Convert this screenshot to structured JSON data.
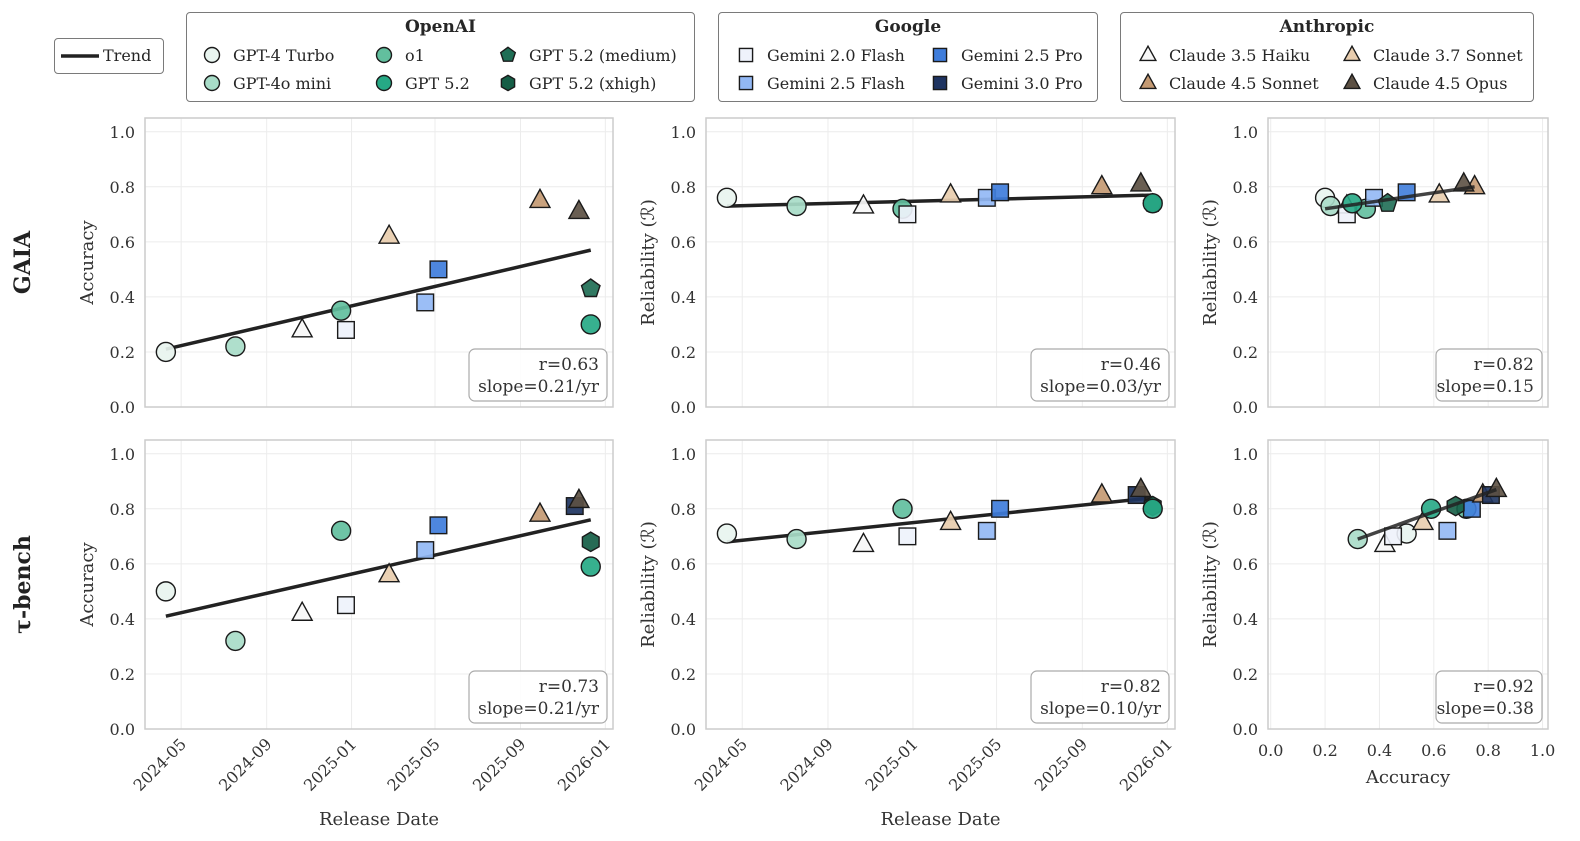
{
  "chart_data": {
    "type": "scatter",
    "trend_legend_label": "Trend",
    "legend_groups": [
      {
        "title": "OpenAI",
        "models": [
          {
            "name": "GPT-4 Turbo",
            "marker": "circle",
            "color": "#e8f4ef"
          },
          {
            "name": "GPT-4o mini",
            "marker": "circle",
            "color": "#a8dcc8"
          },
          {
            "name": "o1",
            "marker": "circle",
            "color": "#62bf9e"
          },
          {
            "name": "GPT 5.2",
            "marker": "circle",
            "color": "#26a985"
          },
          {
            "name": "GPT 5.2 (medium)",
            "marker": "pentagon",
            "color": "#1f6e55"
          },
          {
            "name": "GPT 5.2 (xhigh)",
            "marker": "hexagon",
            "color": "#155e46"
          }
        ]
      },
      {
        "title": "Google",
        "models": [
          {
            "name": "Gemini 2.0 Flash",
            "marker": "square",
            "color": "#eef2fb"
          },
          {
            "name": "Gemini 2.5 Flash",
            "marker": "square",
            "color": "#92b8f5"
          },
          {
            "name": "Gemini 2.5 Pro",
            "marker": "square",
            "color": "#3f7ddb"
          },
          {
            "name": "Gemini 3.0 Pro",
            "marker": "square",
            "color": "#1e3461"
          }
        ]
      },
      {
        "title": "Anthropic",
        "models": [
          {
            "name": "Claude 3.5 Haiku",
            "marker": "triangle",
            "color": "#f7f7f7"
          },
          {
            "name": "Claude 3.7 Sonnet",
            "marker": "triangle",
            "color": "#e8cdae"
          },
          {
            "name": "Claude 4.5 Sonnet",
            "marker": "triangle",
            "color": "#c49a73"
          },
          {
            "name": "Claude 4.5 Opus",
            "marker": "triangle",
            "color": "#5c5043"
          }
        ]
      }
    ],
    "release_dates": {
      "GPT-4 Turbo": "2024-04-09",
      "GPT-4o mini": "2024-07-18",
      "Claude 3.5 Haiku": "2024-10-22",
      "o1": "2024-12-17",
      "Gemini 2.0 Flash": "2024-12-24",
      "Claude 3.7 Sonnet": "2025-02-24",
      "Gemini 2.5 Flash": "2025-04-17",
      "Gemini 2.5 Pro": "2025-05-06",
      "Claude 4.5 Sonnet": "2025-09-29",
      "Gemini 3.0 Pro": "2025-11-18",
      "Claude 4.5 Opus": "2025-11-24",
      "GPT 5.2": "2025-12-11",
      "GPT 5.2 (medium)": "2025-12-11",
      "GPT 5.2 (xhigh)": "2025-12-11"
    },
    "rows": [
      {
        "label": "GAIA",
        "accuracy": {
          "GPT-4 Turbo": 0.2,
          "GPT-4o mini": 0.22,
          "Claude 3.5 Haiku": 0.28,
          "o1": 0.35,
          "Gemini 2.0 Flash": 0.28,
          "Claude 3.7 Sonnet": 0.62,
          "Gemini 2.5 Flash": 0.38,
          "Gemini 2.5 Pro": 0.5,
          "Claude 4.5 Sonnet": 0.75,
          "Claude 4.5 Opus": 0.71,
          "GPT 5.2": 0.3,
          "GPT 5.2 (medium)": 0.43
        },
        "reliability": {
          "GPT-4 Turbo": 0.76,
          "GPT-4o mini": 0.73,
          "Claude 3.5 Haiku": 0.73,
          "o1": 0.72,
          "Gemini 2.0 Flash": 0.7,
          "Claude 3.7 Sonnet": 0.77,
          "Gemini 2.5 Flash": 0.76,
          "Gemini 2.5 Pro": 0.78,
          "Claude 4.5 Sonnet": 0.8,
          "Claude 4.5 Opus": 0.81,
          "GPT 5.2": 0.74,
          "GPT 5.2 (medium)": 0.74
        },
        "panels": [
          {
            "xlabel": "",
            "ylabel": "Accuracy",
            "r": "r=0.63",
            "slope": "slope=0.21/yr",
            "trend": {
              "start": [
                "2024-04-09",
                0.21
              ],
              "end": [
                "2025-12-11",
                0.57
              ]
            }
          },
          {
            "xlabel": "",
            "ylabel": "Reliability (ℛ)",
            "r": "r=0.46",
            "slope": "slope=0.03/yr",
            "trend": {
              "start": [
                "2024-04-09",
                0.73
              ],
              "end": [
                "2025-12-11",
                0.77
              ]
            }
          },
          {
            "xlabel": "",
            "ylabel": "Reliability (ℛ)",
            "r": "r=0.82",
            "slope": "slope=0.15",
            "trend": {
              "start": [
                0.2,
                0.72
              ],
              "end": [
                0.75,
                0.8
              ]
            }
          }
        ]
      },
      {
        "label": "τ-bench",
        "accuracy": {
          "GPT-4 Turbo": 0.5,
          "GPT-4o mini": 0.32,
          "Claude 3.5 Haiku": 0.42,
          "o1": 0.72,
          "Gemini 2.0 Flash": 0.45,
          "Claude 3.7 Sonnet": 0.56,
          "Gemini 2.5 Flash": 0.65,
          "Gemini 2.5 Pro": 0.74,
          "Claude 4.5 Sonnet": 0.78,
          "Gemini 3.0 Pro": 0.81,
          "Claude 4.5 Opus": 0.83,
          "GPT 5.2": 0.59,
          "GPT 5.2 (xhigh)": 0.68
        },
        "reliability": {
          "GPT-4 Turbo": 0.71,
          "GPT-4o mini": 0.69,
          "Claude 3.5 Haiku": 0.67,
          "o1": 0.8,
          "Gemini 2.0 Flash": 0.7,
          "Claude 3.7 Sonnet": 0.75,
          "Gemini 2.5 Flash": 0.72,
          "Gemini 2.5 Pro": 0.8,
          "Claude 4.5 Sonnet": 0.85,
          "Gemini 3.0 Pro": 0.85,
          "Claude 4.5 Opus": 0.87,
          "GPT 5.2": 0.8,
          "GPT 5.2 (xhigh)": 0.81
        },
        "panels": [
          {
            "xlabel": "Release Date",
            "ylabel": "Accuracy",
            "r": "r=0.73",
            "slope": "slope=0.21/yr",
            "trend": {
              "start": [
                "2024-04-09",
                0.41
              ],
              "end": [
                "2025-12-11",
                0.76
              ]
            }
          },
          {
            "xlabel": "Release Date",
            "ylabel": "Reliability (ℛ)",
            "r": "r=0.82",
            "slope": "slope=0.10/yr",
            "trend": {
              "start": [
                "2024-04-09",
                0.68
              ],
              "end": [
                "2025-12-11",
                0.84
              ]
            }
          },
          {
            "xlabel": "Accuracy",
            "ylabel": "Reliability (ℛ)",
            "r": "r=0.92",
            "slope": "slope=0.38",
            "trend": {
              "start": [
                0.32,
                0.69
              ],
              "end": [
                0.83,
                0.87
              ]
            }
          }
        ]
      }
    ],
    "date_axis": {
      "ticks": [
        "2024-05",
        "2024-09",
        "2025-01",
        "2025-05",
        "2025-09",
        "2026-01"
      ],
      "range": [
        "2024-03-10",
        "2026-01-12"
      ]
    },
    "value_axis": {
      "ticks": [
        "0.0",
        "0.2",
        "0.4",
        "0.6",
        "0.8",
        "1.0"
      ],
      "range": [
        0,
        1.05
      ]
    },
    "accuracy_axis": {
      "ticks": [
        "0.0",
        "0.2",
        "0.4",
        "0.6",
        "0.8",
        "1.0"
      ],
      "range": [
        -0.01,
        1.02
      ]
    },
    "grid": true,
    "stat_box_placement": "bottom-right"
  }
}
